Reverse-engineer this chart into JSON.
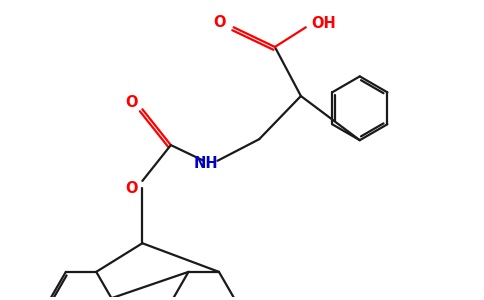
{
  "background_color": "#ffffff",
  "bond_color": "#1a1a1a",
  "oxygen_color": "#ff0000",
  "nitrogen_color": "#0000cc",
  "line_width": 1.6,
  "figsize": [
    4.84,
    3.0
  ],
  "dpi": 100,
  "xlim": [
    0,
    9.5
  ],
  "ylim": [
    0,
    6.0
  ]
}
